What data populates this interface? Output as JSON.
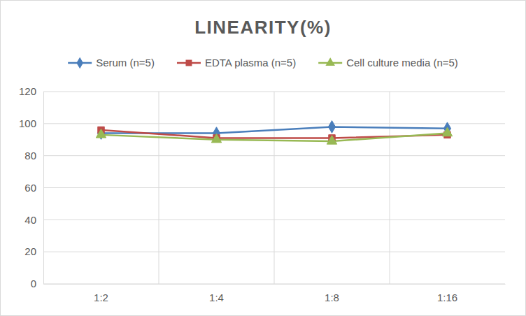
{
  "chart_data": {
    "type": "line",
    "title": "LINEARITY(%)",
    "categories": [
      "1:2",
      "1:4",
      "1:8",
      "1:16"
    ],
    "series": [
      {
        "name": "Serum (n=5)",
        "color": "#4a7ebb",
        "marker": "diamond",
        "values": [
          94,
          94,
          98,
          97
        ]
      },
      {
        "name": "EDTA plasma (n=5)",
        "color": "#be4b48",
        "marker": "square",
        "values": [
          96,
          91,
          91,
          93
        ]
      },
      {
        "name": "Cell culture media (n=5)",
        "color": "#98b954",
        "marker": "triangle",
        "values": [
          93,
          90,
          89,
          94
        ]
      }
    ],
    "ylim": [
      0,
      120
    ],
    "yticks": [
      0,
      20,
      40,
      60,
      80,
      100,
      120
    ],
    "grid": true,
    "legend": "top"
  }
}
